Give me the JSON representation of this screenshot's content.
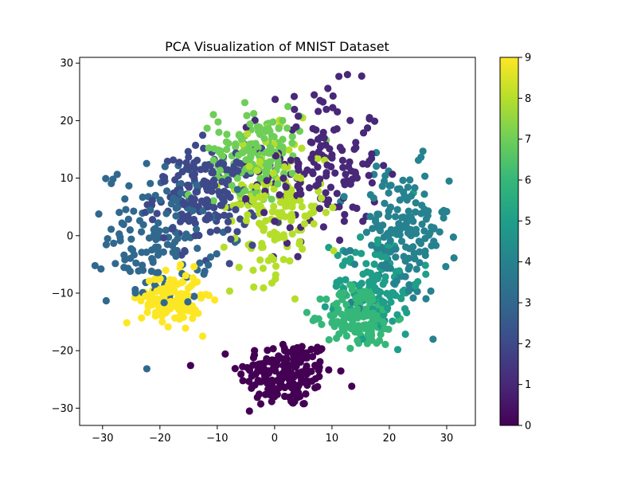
{
  "chart_data": {
    "type": "scatter",
    "title": "PCA Visualization of MNIST Dataset",
    "xlabel": "",
    "ylabel": "",
    "xlim": [
      -34,
      35
    ],
    "ylim": [
      -33,
      31
    ],
    "x_ticks": [
      -30,
      -20,
      -10,
      0,
      10,
      20,
      30
    ],
    "y_ticks": [
      -30,
      -20,
      -10,
      0,
      10,
      20,
      30
    ],
    "grid": false,
    "legend": "none",
    "colormap": "viridis",
    "colorbar": {
      "min": 0,
      "max": 9,
      "ticks": [
        0,
        1,
        2,
        3,
        4,
        5,
        6,
        7,
        8,
        9
      ]
    },
    "clusters": [
      {
        "label": 0,
        "color": "#440154",
        "center": [
          2,
          -24
        ],
        "spread": [
          5.5,
          4
        ],
        "count": 180
      },
      {
        "label": 1,
        "color": "#482878",
        "center": [
          8,
          12
        ],
        "spread": [
          7,
          9
        ],
        "count": 160
      },
      {
        "label": 2,
        "color": "#3e4989",
        "center": [
          -12,
          7
        ],
        "spread": [
          6,
          5.5
        ],
        "count": 180
      },
      {
        "label": 3,
        "color": "#31688e",
        "center": [
          -20,
          0
        ],
        "spread": [
          6,
          8
        ],
        "count": 150
      },
      {
        "label": 4,
        "color": "#26828e",
        "center": [
          22,
          0
        ],
        "spread": [
          5.5,
          8
        ],
        "count": 170
      },
      {
        "label": 5,
        "color": "#1f9e89",
        "center": [
          18,
          -8
        ],
        "spread": [
          5,
          6
        ],
        "count": 110
      },
      {
        "label": 6,
        "color": "#35b779",
        "center": [
          15,
          -14
        ],
        "spread": [
          4,
          3.5
        ],
        "count": 170
      },
      {
        "label": 7,
        "color": "#6ece58",
        "center": [
          -3,
          15
        ],
        "spread": [
          5,
          5
        ],
        "count": 150
      },
      {
        "label": 8,
        "color": "#b5de2b",
        "center": [
          0,
          5
        ],
        "spread": [
          6,
          8
        ],
        "count": 170
      },
      {
        "label": 9,
        "color": "#fde725",
        "center": [
          -18,
          -11
        ],
        "spread": [
          3.5,
          3
        ],
        "count": 140
      }
    ]
  }
}
